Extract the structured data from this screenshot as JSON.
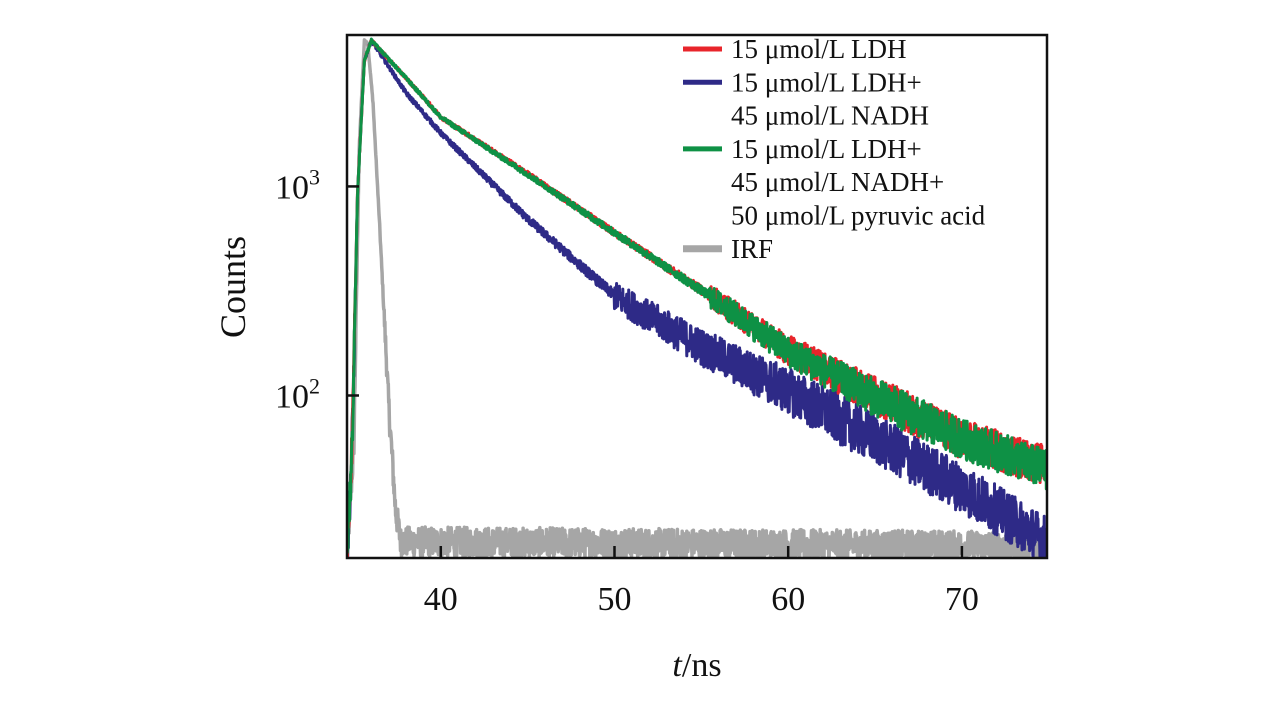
{
  "chart_data": {
    "type": "line",
    "title": "",
    "xlabel_italic": "t",
    "xlabel_rest": "/ns",
    "ylabel": "Counts",
    "xlim": [
      34.6,
      74.9
    ],
    "ylim": [
      16.7,
      5300
    ],
    "yscale": "log",
    "grid": false,
    "legend_position": "top-right",
    "x_ticks": [
      {
        "value": 40,
        "label": "40"
      },
      {
        "value": 50,
        "label": "50"
      },
      {
        "value": 60,
        "label": "60"
      },
      {
        "value": 70,
        "label": "70"
      }
    ],
    "y_ticks": [
      {
        "value": 1000,
        "base": "10",
        "exp": "3"
      },
      {
        "value": 100,
        "base": "10",
        "exp": "2"
      }
    ],
    "series": [
      {
        "name": "IRF",
        "legend": [
          "IRF"
        ],
        "color": "#a6a6a6",
        "noise": 0.12,
        "points": [
          [
            34.6,
            16.7
          ],
          [
            35.0,
            60
          ],
          [
            35.3,
            1500
          ],
          [
            35.6,
            5000
          ],
          [
            35.8,
            4800
          ],
          [
            36.1,
            2500
          ],
          [
            36.5,
            600
          ],
          [
            37.0,
            90
          ],
          [
            37.4,
            28
          ],
          [
            37.7,
            20
          ],
          [
            74.9,
            19
          ]
        ]
      },
      {
        "name": "15 μmol/L LDH",
        "legend": [
          "15 μmol/L LDH"
        ],
        "color": "#e8252b",
        "noise": 0.16,
        "points": [
          [
            34.6,
            16.7
          ],
          [
            34.9,
            60
          ],
          [
            35.2,
            900
          ],
          [
            35.6,
            4000
          ],
          [
            36.0,
            5000
          ],
          [
            38,
            3300
          ],
          [
            40,
            2150
          ],
          [
            45,
            1150
          ],
          [
            50,
            600
          ],
          [
            55,
            320
          ],
          [
            60,
            165
          ],
          [
            65,
            100
          ],
          [
            70,
            62
          ],
          [
            74.9,
            46
          ]
        ]
      },
      {
        "name": "15 μmol/L LDH+ 45 μmol/L NADH",
        "legend": [
          "15 μmol/L LDH+",
          "45 μmol/L NADH"
        ],
        "color": "#2e2a87",
        "noise": 0.2,
        "points": [
          [
            34.6,
            16.7
          ],
          [
            34.9,
            60
          ],
          [
            35.2,
            900
          ],
          [
            35.6,
            4000
          ],
          [
            36.0,
            5000
          ],
          [
            38,
            2800
          ],
          [
            40,
            1800
          ],
          [
            45,
            700
          ],
          [
            50,
            300
          ],
          [
            55,
            170
          ],
          [
            60,
            105
          ],
          [
            65,
            62
          ],
          [
            70,
            36
          ],
          [
            74.9,
            20
          ]
        ]
      },
      {
        "name": "15 μmol/L LDH+ 45 μmol/L NADH+ 50 μmol/L pyruvic acid",
        "legend": [
          "15 μmol/L LDH+",
          "45 μmol/L NADH+",
          "50 μmol/L pyruvic acid"
        ],
        "color": "#0e9145",
        "noise": 0.16,
        "points": [
          [
            34.6,
            16.7
          ],
          [
            34.9,
            60
          ],
          [
            35.2,
            900
          ],
          [
            35.6,
            4000
          ],
          [
            36.0,
            5000
          ],
          [
            38,
            3300
          ],
          [
            40,
            2140
          ],
          [
            45,
            1140
          ],
          [
            50,
            600
          ],
          [
            55,
            318
          ],
          [
            60,
            162
          ],
          [
            65,
            98
          ],
          [
            70,
            62
          ],
          [
            74.9,
            44
          ]
        ]
      }
    ],
    "legend_order": [
      1,
      2,
      3,
      0
    ]
  }
}
